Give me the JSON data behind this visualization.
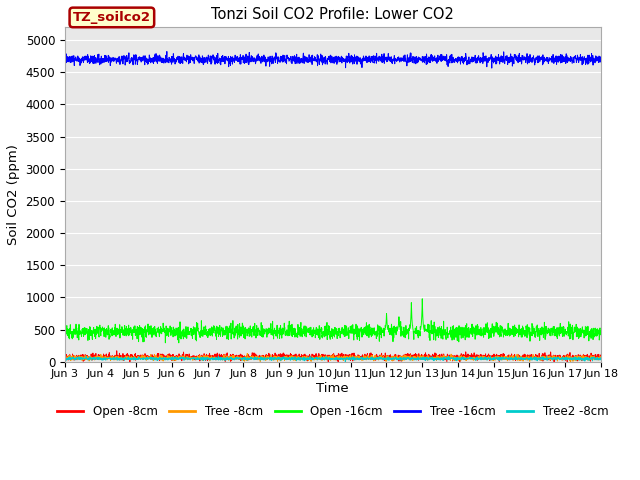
{
  "title": "Tonzi Soil CO2 Profile: Lower CO2",
  "xlabel": "Time",
  "ylabel": "Soil CO2 (ppm)",
  "ylim": [
    0,
    5200
  ],
  "yticks": [
    0,
    500,
    1000,
    1500,
    2000,
    2500,
    3000,
    3500,
    4000,
    4500,
    5000
  ],
  "bg_color": "#e8e8e8",
  "fig_color": "#ffffff",
  "label_box_text": "TZ_soilco2",
  "label_box_bg": "#ffffcc",
  "label_box_edge": "#aa0000",
  "series": {
    "open_8cm": {
      "label": "Open -8cm",
      "color": "#ff0000",
      "mean": 75,
      "noise": 25
    },
    "tree_8cm": {
      "label": "Tree -8cm",
      "color": "#ff9900",
      "mean": 60,
      "noise": 18
    },
    "open_16cm": {
      "label": "Open -16cm",
      "color": "#00ff00",
      "mean": 470,
      "noise": 55
    },
    "tree_16cm": {
      "label": "Tree -16cm",
      "color": "#0000ff",
      "mean": 4700,
      "noise": 35
    },
    "tree2_8cm": {
      "label": "Tree2 -8cm",
      "color": "#00cccc",
      "mean": 50,
      "noise": 12
    }
  },
  "x_start_day": 3,
  "x_end_day": 18,
  "n_points": 2160,
  "x_tick_days": [
    3,
    4,
    5,
    6,
    7,
    8,
    9,
    10,
    11,
    12,
    13,
    14,
    15,
    16,
    17,
    18
  ],
  "x_tick_labels": [
    "Jun 3",
    "Jun 4",
    "Jun 5",
    "Jun 6",
    "Jun 7",
    "Jun 8",
    "Jun 9",
    "Jun 10",
    "Jun 11",
    "Jun 12",
    "Jun 13",
    "Jun 14",
    "Jun 15",
    "Jun 16",
    "Jun 17",
    "Jun 18"
  ]
}
